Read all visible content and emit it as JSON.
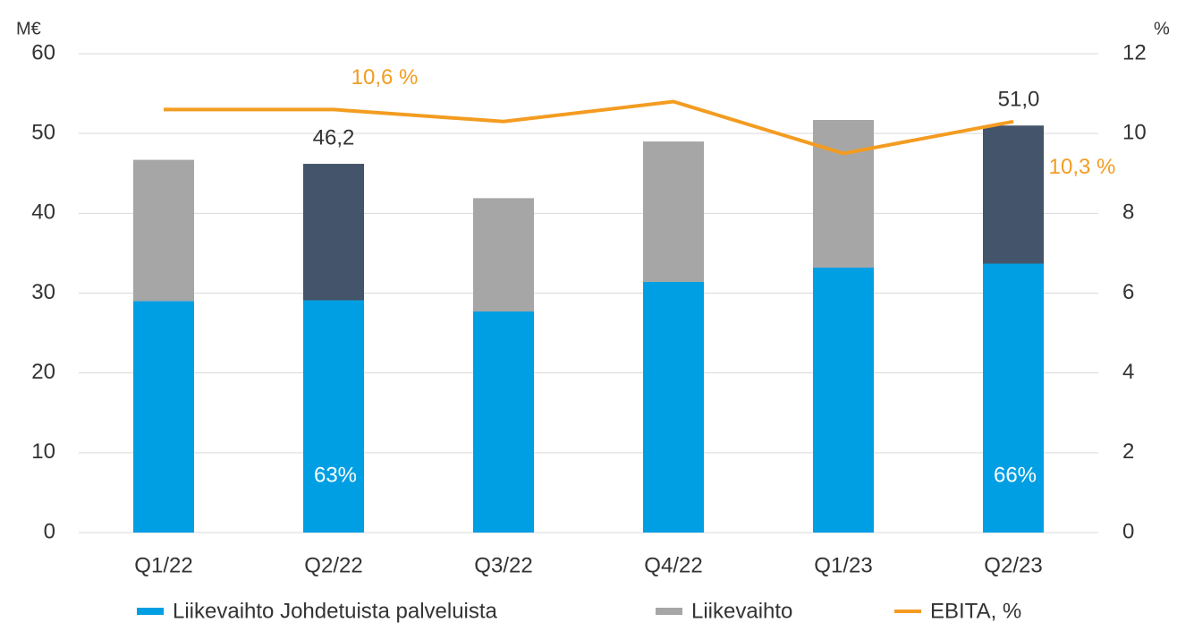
{
  "chart_data": {
    "type": "bar",
    "stacked": true,
    "y_unit": "M€",
    "y2_unit": "%",
    "categories": [
      "Q1/22",
      "Q2/22",
      "Q3/22",
      "Q4/22",
      "Q1/23",
      "Q2/23"
    ],
    "series": [
      {
        "name": "Liikevaihto Johdetuista palveluista",
        "color": "#009fe3",
        "values": [
          29.0,
          29.1,
          27.7,
          31.4,
          33.2,
          33.7
        ]
      },
      {
        "name": "Liikevaihto",
        "color": "#a6a6a6",
        "point_colors": [
          "#a6a6a6",
          "#44546a",
          "#a6a6a6",
          "#a6a6a6",
          "#a6a6a6",
          "#44546a"
        ],
        "values": [
          17.7,
          17.1,
          14.2,
          17.6,
          18.5,
          17.3
        ]
      },
      {
        "name": "EBITA, %",
        "color": "#f39c21",
        "type": "line",
        "axis": "y2",
        "values": [
          10.6,
          10.6,
          10.3,
          10.8,
          9.5,
          10.3
        ],
        "value_labels": [
          null,
          "10,6 %",
          null,
          null,
          null,
          "10,3 %"
        ]
      }
    ],
    "totals": [
      null,
      46.2,
      null,
      null,
      null,
      51.0
    ],
    "total_labels": [
      null,
      "46,2",
      null,
      null,
      null,
      "51,0"
    ],
    "share_labels": [
      null,
      "63%",
      null,
      null,
      null,
      "66%"
    ],
    "ylim": [
      0,
      60
    ],
    "yticks": [
      0,
      10,
      20,
      30,
      40,
      50,
      60
    ],
    "y2lim": [
      0,
      12
    ],
    "y2ticks": [
      0,
      2,
      4,
      6,
      8,
      10,
      12
    ],
    "grid": true,
    "legend": "bottom"
  }
}
